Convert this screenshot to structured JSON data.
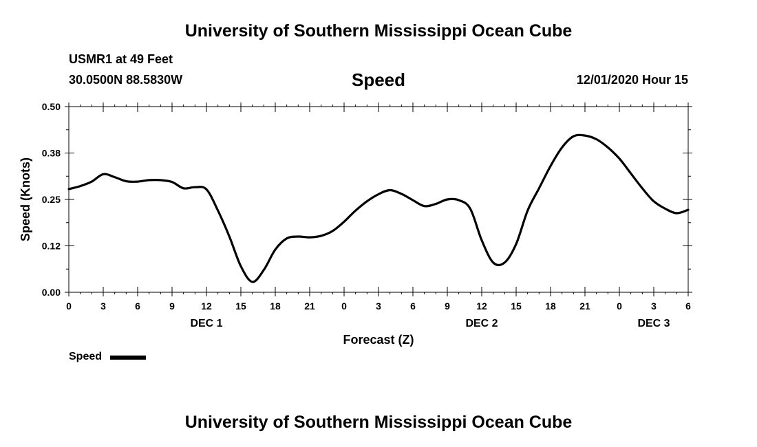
{
  "header": {
    "org_title": "University of Southern Mississippi Ocean Cube",
    "station": "USMR1 at 49 Feet",
    "coords": "30.0500N 88.5830W",
    "issued": "12/01/2020 Hour 15"
  },
  "footer": {
    "org_title": "University of Southern Mississippi Ocean Cube"
  },
  "legend": {
    "label": "Speed",
    "color": "#000000"
  },
  "chart_data": {
    "type": "line",
    "title": "Speed",
    "xlabel": "Forecast (Z)",
    "ylabel": "Speed (Knots)",
    "grid": false,
    "legend_position": "bottom-left",
    "xlim": [
      0,
      54
    ],
    "ylim": [
      0,
      0.5
    ],
    "yticks": [
      "0.00",
      "0.12",
      "0.25",
      "0.38",
      "0.50"
    ],
    "xticks": [
      "0",
      "3",
      "6",
      "9",
      "12",
      "15",
      "18",
      "21",
      "0",
      "3",
      "6",
      "9",
      "12",
      "15",
      "18",
      "21",
      "0",
      "3",
      "6"
    ],
    "date_labels": [
      {
        "label": "DEC 1",
        "at": 12
      },
      {
        "label": "DEC 2",
        "at": 36
      },
      {
        "label": "DEC 3",
        "at": 51
      }
    ],
    "series": [
      {
        "name": "Speed",
        "x": [
          0,
          1,
          2,
          3,
          4,
          5,
          6,
          7,
          8,
          9,
          10,
          11,
          12,
          13,
          14,
          15,
          16,
          17,
          18,
          19,
          20,
          21,
          22,
          23,
          24,
          25,
          26,
          27,
          28,
          29,
          30,
          31,
          32,
          33,
          34,
          35,
          36,
          37,
          38,
          39,
          40,
          41,
          42,
          43,
          44,
          45,
          46,
          47,
          48,
          49,
          50,
          51,
          52,
          53,
          54
        ],
        "y": [
          0.278,
          0.286,
          0.298,
          0.318,
          0.31,
          0.299,
          0.298,
          0.302,
          0.302,
          0.297,
          0.28,
          0.283,
          0.277,
          0.22,
          0.15,
          0.07,
          0.028,
          0.06,
          0.115,
          0.145,
          0.15,
          0.148,
          0.152,
          0.165,
          0.19,
          0.22,
          0.245,
          0.264,
          0.275,
          0.265,
          0.248,
          0.232,
          0.238,
          0.25,
          0.248,
          0.225,
          0.14,
          0.08,
          0.08,
          0.13,
          0.22,
          0.28,
          0.34,
          0.39,
          0.42,
          0.422,
          0.412,
          0.39,
          0.36,
          0.32,
          0.28,
          0.245,
          0.225,
          0.213,
          0.222
        ]
      }
    ]
  }
}
